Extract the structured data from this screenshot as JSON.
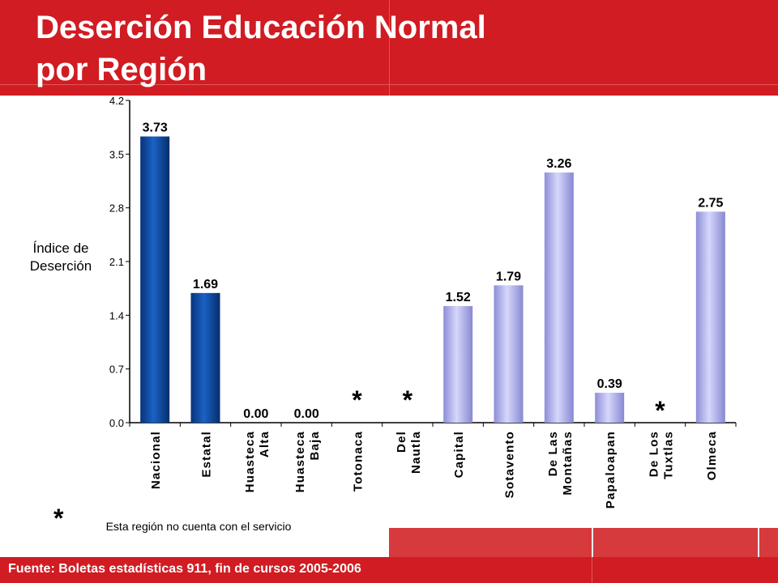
{
  "header": {
    "title_line1": "Deserción Educación Normal",
    "title_line2": "por Región",
    "color": "#d01c22"
  },
  "chart_data": {
    "type": "bar",
    "title": "Deserción Educación Normal por Región",
    "ylabel_line1": "Índice de",
    "ylabel_line2": "Deserción",
    "ylim": [
      0.0,
      4.2
    ],
    "yticks": [
      "0.0",
      "0.7",
      "1.4",
      "2.1",
      "2.8",
      "3.5",
      "4.2"
    ],
    "categories": [
      {
        "label": "Nacional",
        "value": 3.73,
        "data_label": "3.73",
        "group": "dark"
      },
      {
        "label": "Estatal",
        "value": 1.69,
        "data_label": "1.69",
        "group": "dark"
      },
      {
        "label": "Huasteca Alta",
        "value": 0.0,
        "data_label": "0.00",
        "group": "light"
      },
      {
        "label": "Huasteca Baja",
        "value": 0.0,
        "data_label": "0.00",
        "group": "light"
      },
      {
        "label": "Totonaca",
        "value": null,
        "data_label": "*",
        "group": "light"
      },
      {
        "label": "Del Nautla",
        "value": null,
        "data_label": "*",
        "group": "light"
      },
      {
        "label": "Capital",
        "value": 1.52,
        "data_label": "1.52",
        "group": "light"
      },
      {
        "label": "Sotavento",
        "value": 1.79,
        "data_label": "1.79",
        "group": "light"
      },
      {
        "label": "De Las Montañas",
        "value": 3.26,
        "data_label": "3.26",
        "group": "light"
      },
      {
        "label": "Papaloapan",
        "value": 0.39,
        "data_label": "0.39",
        "group": "light"
      },
      {
        "label": "De Los Tuxtlas",
        "value": null,
        "data_label": "*",
        "group": "light"
      },
      {
        "label": "Olmeca",
        "value": 2.75,
        "data_label": "2.75",
        "group": "light"
      }
    ],
    "colors": {
      "dark": "#0d4aa0",
      "light": "#b6b7ee"
    },
    "grid": false,
    "legend": "none"
  },
  "note": {
    "symbol": "*",
    "text": "Esta región no cuenta con el servicio"
  },
  "footer": {
    "source": "Fuente: Boletas estadísticas 911, fin de cursos 2005-2006"
  }
}
